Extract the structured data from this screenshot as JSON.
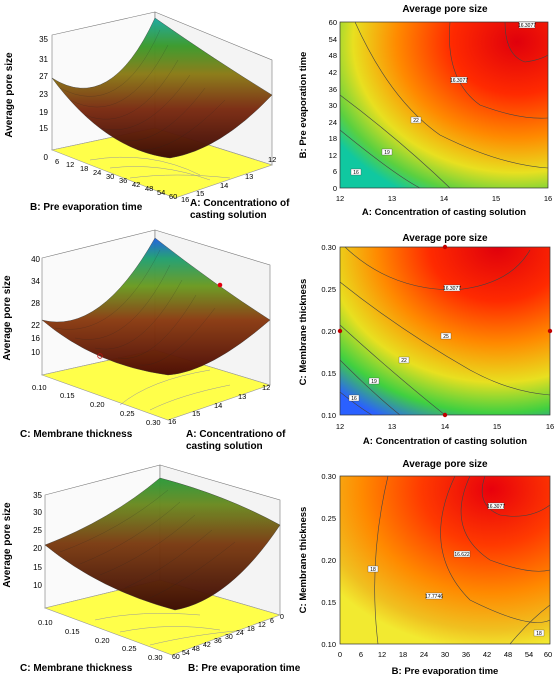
{
  "chart_data": [
    {
      "type": "surface",
      "zlabel": "Average pore size",
      "x_axis_label": "B: Pre evaporation time",
      "y_axis_label_lines": [
        "A: Concentrationo of",
        "casting solution"
      ],
      "z_ticks": [
        "0",
        "7",
        "15",
        "19",
        "23",
        "27",
        "31",
        "35"
      ],
      "x_ticks": [
        "0",
        "6",
        "12",
        "18",
        "24",
        "30",
        "36",
        "42",
        "48",
        "54",
        "60"
      ],
      "y_ticks": [
        "12",
        "13",
        "14",
        "15",
        "16"
      ],
      "zlim": [
        0,
        35
      ]
    },
    {
      "type": "contour",
      "title": "Average pore size",
      "xlabel": "A: Concentration of casting solution",
      "ylabel": "B: Pre evaporation time",
      "x_ticks": [
        "12",
        "13",
        "14",
        "15",
        "16"
      ],
      "y_ticks": [
        "0",
        "6",
        "12",
        "18",
        "24",
        "30",
        "36",
        "42",
        "48",
        "54",
        "60"
      ],
      "xlim": [
        12,
        16
      ],
      "ylim": [
        0,
        60
      ],
      "contour_labels": [
        "16",
        "19",
        "22",
        "16.3077",
        "16.3077"
      ]
    },
    {
      "type": "surface",
      "zlabel": "Average pore size",
      "x_axis_label": "C: Membrane thickness",
      "y_axis_label_lines": [
        "A: Concentrationo of",
        "casting solution"
      ],
      "z_ticks": [
        "10",
        "16",
        "22",
        "28",
        "34",
        "40"
      ],
      "x_ticks": [
        "0.10",
        "0.15",
        "0.20",
        "0.25",
        "0.30"
      ],
      "y_ticks": [
        "16",
        "15",
        "14",
        "13",
        "12"
      ],
      "zlim": [
        10,
        40
      ]
    },
    {
      "type": "contour",
      "title": "Average pore size",
      "xlabel": "A: Concentration of casting solution",
      "ylabel": "C: Membrane thickness",
      "x_ticks": [
        "12",
        "13",
        "14",
        "15",
        "16"
      ],
      "y_ticks": [
        "0.10",
        "0.15",
        "0.20",
        "0.25",
        "0.30"
      ],
      "xlim": [
        12,
        16
      ],
      "ylim": [
        0.1,
        0.3
      ],
      "contour_labels": [
        "16",
        "19",
        "22",
        "25",
        "16.3077"
      ]
    },
    {
      "type": "surface",
      "zlabel": "Average pore size",
      "x_axis_label": "C: Membrane thickness",
      "y_axis_label_lines": [
        "B: Pre evaporation time"
      ],
      "z_ticks": [
        "10",
        "15",
        "20",
        "25",
        "30",
        "35"
      ],
      "x_ticks": [
        "0.10",
        "0.15",
        "0.20",
        "0.25",
        "0.30"
      ],
      "y_ticks": [
        "60",
        "54",
        "48",
        "42",
        "36",
        "30",
        "24",
        "18",
        "12",
        "6",
        "0"
      ],
      "zlim": [
        10,
        35
      ]
    },
    {
      "type": "contour",
      "title": "Average pore size",
      "xlabel": "B: Pre evaporation time",
      "ylabel": "C: Membrane thickness",
      "x_ticks": [
        "0",
        "6",
        "12",
        "18",
        "24",
        "30",
        "36",
        "42",
        "48",
        "54",
        "60"
      ],
      "y_ticks": [
        "0.10",
        "0.15",
        "0.20",
        "0.25",
        "0.30"
      ],
      "xlim": [
        0,
        60
      ],
      "ylim": [
        0.1,
        0.3
      ],
      "contour_labels": [
        "18",
        "16.3077",
        "17.7746",
        "16.622",
        "18"
      ]
    }
  ],
  "colors": {
    "red": "#e3000f",
    "orange": "#ff8a00",
    "yellow": "#f2ea20",
    "green": "#39d34a",
    "blue": "#2a5cff",
    "floor": "#ffff55",
    "surface_dark": "#5a1a10",
    "surface_green": "#2f8a2a"
  }
}
